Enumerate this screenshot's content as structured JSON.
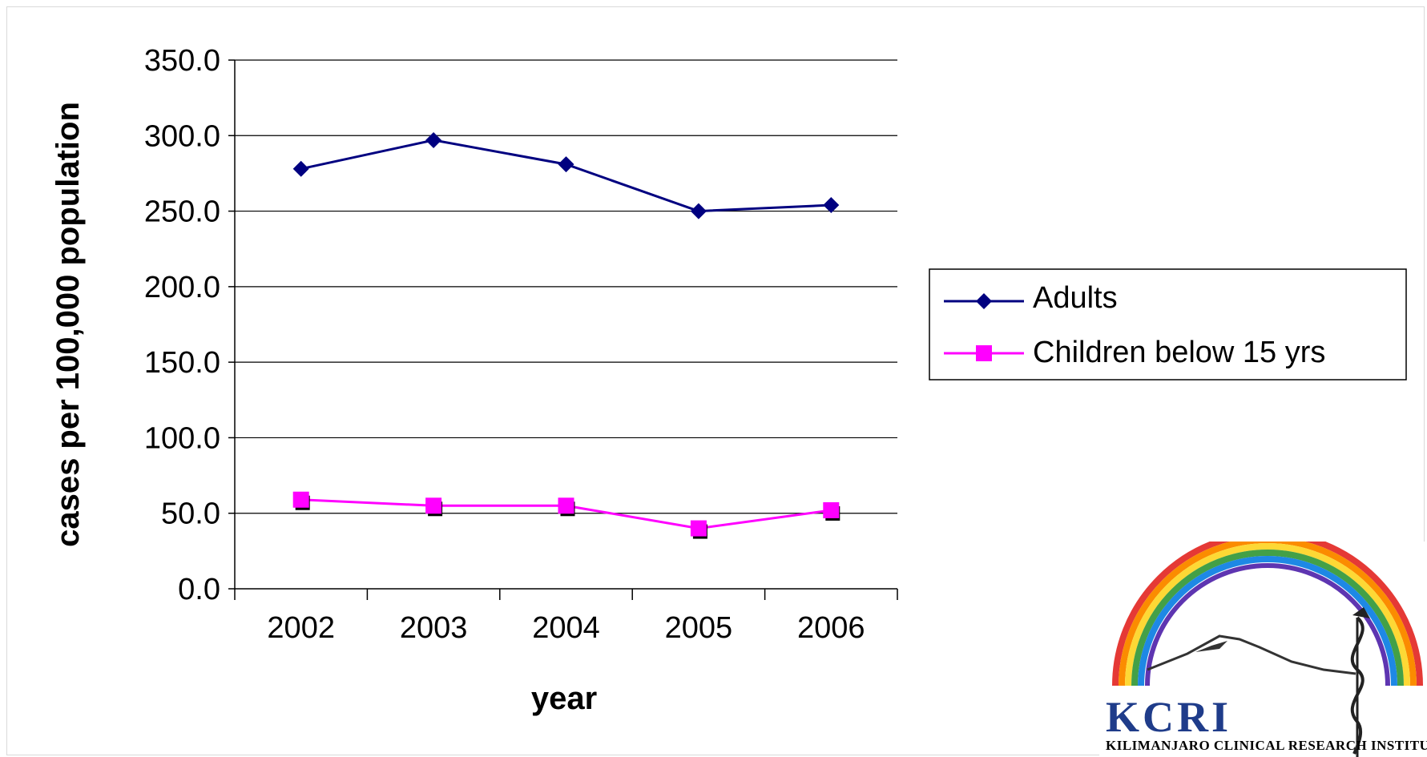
{
  "chart_data": {
    "type": "line",
    "categories": [
      "2002",
      "2003",
      "2004",
      "2005",
      "2006"
    ],
    "series": [
      {
        "name": "Adults",
        "values": [
          278.0,
          297.0,
          281.0,
          250.0,
          254.0
        ],
        "color": "#000080",
        "marker": "diamond"
      },
      {
        "name": "Children below 15 yrs",
        "values": [
          59.0,
          55.0,
          55.0,
          40.0,
          52.0
        ],
        "color": "#ff00ff",
        "marker": "square"
      }
    ],
    "ylim": [
      0,
      350
    ],
    "yticks": [
      "0.0",
      "50.0",
      "100.0",
      "150.0",
      "200.0",
      "250.0",
      "300.0",
      "350.0"
    ],
    "xlabel": "year",
    "ylabel": "cases per 100,000 population",
    "grid": true,
    "legend_position": "right"
  },
  "logo": {
    "name": "KCRI",
    "subtitle": "KILIMANJARO CLINICAL RESEARCH INSTITUTE"
  }
}
